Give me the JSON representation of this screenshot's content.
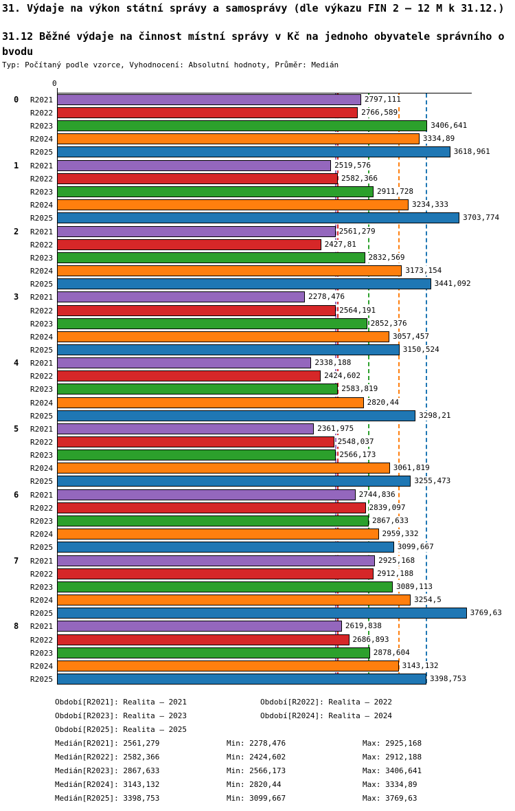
{
  "header": {
    "title": "31. Výdaje na výkon státní správy a samosprávy (dle výkazu FIN 2 – 12 M k 31.12.)",
    "subtitle_line1": "31.12 Běžné výdaje na činnost místní správy v Kč na jednoho obyvatele správního o",
    "subtitle_line2": "bvodu",
    "meta": "Typ: Počítaný podle vzorce, Vyhodnocení: Absolutní hodnoty, Průměr: Medián"
  },
  "chart_data": {
    "type": "bar",
    "orientation": "horizontal",
    "axis_zero_label": "0",
    "xlim": [
      0,
      3823
    ],
    "grid": false,
    "series": [
      "R2021",
      "R2022",
      "R2023",
      "R2024",
      "R2025"
    ],
    "colors": [
      "#9467bd",
      "#d62728",
      "#2ca02c",
      "#ff7f0e",
      "#1f77b4"
    ],
    "groups": [
      {
        "label": "0",
        "values": [
          "2797,111",
          "2766,589",
          "3406,641",
          "3334,89",
          "3618,961"
        ]
      },
      {
        "label": "1",
        "values": [
          "2519,576",
          "2582,366",
          "2911,728",
          "3234,333",
          "3703,774"
        ]
      },
      {
        "label": "2",
        "values": [
          "2561,279",
          "2427,81",
          "2832,569",
          "3173,154",
          "3441,092"
        ]
      },
      {
        "label": "3",
        "values": [
          "2278,476",
          "2564,191",
          "2852,376",
          "3057,457",
          "3150,524"
        ]
      },
      {
        "label": "4",
        "values": [
          "2338,188",
          "2424,602",
          "2583,819",
          "2820,44",
          "3298,21"
        ]
      },
      {
        "label": "5",
        "values": [
          "2361,975",
          "2548,037",
          "2566,173",
          "3061,819",
          "3255,473"
        ]
      },
      {
        "label": "6",
        "values": [
          "2744,836",
          "2839,097",
          "2867,633",
          "2959,332",
          "3099,667"
        ]
      },
      {
        "label": "7",
        "values": [
          "2925,168",
          "2912,188",
          "3089,113",
          "3254,5",
          "3769,63"
        ]
      },
      {
        "label": "8",
        "values": [
          "2619,838",
          "2686,893",
          "2878,604",
          "3143,132",
          "3398,753"
        ]
      }
    ],
    "median_lines": [
      "2561,279",
      "2582,366",
      "2867,633",
      "3143,132",
      "3398,753"
    ]
  },
  "legend": {
    "obdobi_rows": [
      [
        "Období[R2021]: Realita – 2021",
        "Období[R2022]: Realita – 2022"
      ],
      [
        "Období[R2023]: Realita – 2023",
        "Období[R2024]: Realita – 2024"
      ],
      [
        "Období[R2025]: Realita – 2025"
      ]
    ],
    "stat_rows": [
      {
        "median": "Medián[R2021]: 2561,279",
        "min": "Min: 2278,476",
        "max": "Max: 2925,168"
      },
      {
        "median": "Medián[R2022]: 2582,366",
        "min": "Min: 2424,602",
        "max": "Max: 2912,188"
      },
      {
        "median": "Medián[R2023]: 2867,633",
        "min": "Min: 2566,173",
        "max": "Max: 3406,641"
      },
      {
        "median": "Medián[R2024]: 3143,132",
        "min": "Min: 2820,44",
        "max": "Max: 3334,89"
      },
      {
        "median": "Medián[R2025]: 3398,753",
        "min": "Min: 3099,667",
        "max": "Max: 3769,63"
      }
    ]
  }
}
